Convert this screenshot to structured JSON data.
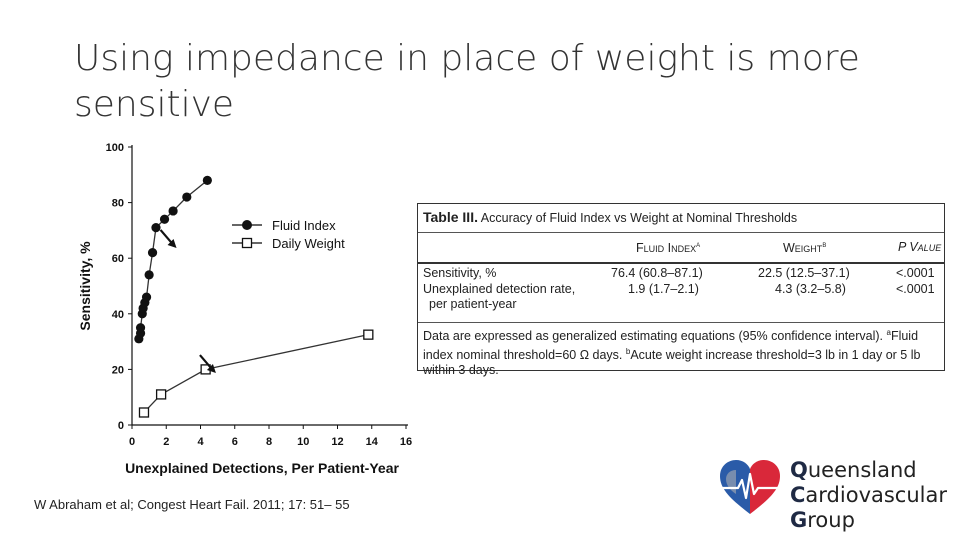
{
  "slide": {
    "title": "Using impedance in place of weight is more\nsensitive",
    "citation": "W Abraham et al; Congest Heart Fail. 2011; 17: 51– 55"
  },
  "chart_data": {
    "type": "line",
    "xlabel": "Unexplained Detections, Per Patient-Year",
    "ylabel": "Sensitivity, %",
    "xlim": [
      0,
      16
    ],
    "ylim": [
      0,
      100
    ],
    "x_ticks": [
      "0",
      "2",
      "4",
      "6",
      "8",
      "10",
      "12",
      "14",
      "16"
    ],
    "y_ticks": [
      "0",
      "20",
      "40",
      "60",
      "80",
      "100"
    ],
    "legend_position": "center-right",
    "series": [
      {
        "name": "Fluid Index",
        "marker": "filled-circle",
        "points": [
          [
            0.4,
            31
          ],
          [
            0.5,
            33
          ],
          [
            0.5,
            35
          ],
          [
            0.6,
            40
          ],
          [
            0.65,
            42
          ],
          [
            0.75,
            44
          ],
          [
            0.85,
            46
          ],
          [
            1.0,
            54
          ],
          [
            1.2,
            62
          ],
          [
            1.4,
            71
          ],
          [
            1.9,
            74
          ],
          [
            2.4,
            77
          ],
          [
            3.2,
            82
          ],
          [
            4.4,
            88
          ]
        ]
      },
      {
        "name": "Daily Weight",
        "marker": "open-square",
        "points": [
          [
            0.7,
            4.5
          ],
          [
            1.7,
            11
          ],
          [
            4.3,
            20
          ],
          [
            13.8,
            32.5
          ]
        ]
      }
    ],
    "annotations": [
      {
        "type": "arrow",
        "target_series": "Fluid Index",
        "at": [
          1.9,
          68
        ]
      },
      {
        "type": "arrow",
        "target_series": "Daily Weight",
        "at": [
          4.2,
          23
        ]
      }
    ],
    "colors": {
      "line": "#333333",
      "marker": "#111111"
    }
  },
  "table": {
    "title_bold": "Table III.",
    "title_rest": "Accuracy of Fluid Index vs Weight at Nominal Thresholds",
    "col_fluid": "Fluid Index",
    "col_fluid_sup": "a",
    "col_weight": "Weight",
    "col_weight_sup": "b",
    "col_p": "P Value",
    "rows": [
      {
        "label": "Sensitivity, %",
        "fluid": "76.4 (60.8–87.1)",
        "weight": "22.5 (12.5–37.1)",
        "p": "<.0001"
      },
      {
        "label": "Unexplained detection rate,",
        "label2": "per patient-year",
        "fluid": "1.9 (1.7–2.1)",
        "weight": "4.3 (3.2–5.8)",
        "p": "<.0001"
      }
    ],
    "foot_1": "Data are expressed as generalized estimating equations (95% confidence interval).",
    "foot_sup_a": "a",
    "foot_2": "Fluid index nominal threshold=60 Ω days.",
    "foot_sup_b": "b",
    "foot_3": "Acute weight increase threshold=3 lb in 1 day or 5 lb within 3 days."
  },
  "logo": {
    "line1_cap": "Q",
    "line1_rest": "ueensland",
    "line2_cap": "C",
    "line2_rest": "ardiovascular",
    "line3_cap": "G",
    "line3_rest": "roup",
    "colors": {
      "red": "#d9283a",
      "blue": "#2a5ba8",
      "grey": "#9aa3b0"
    }
  }
}
